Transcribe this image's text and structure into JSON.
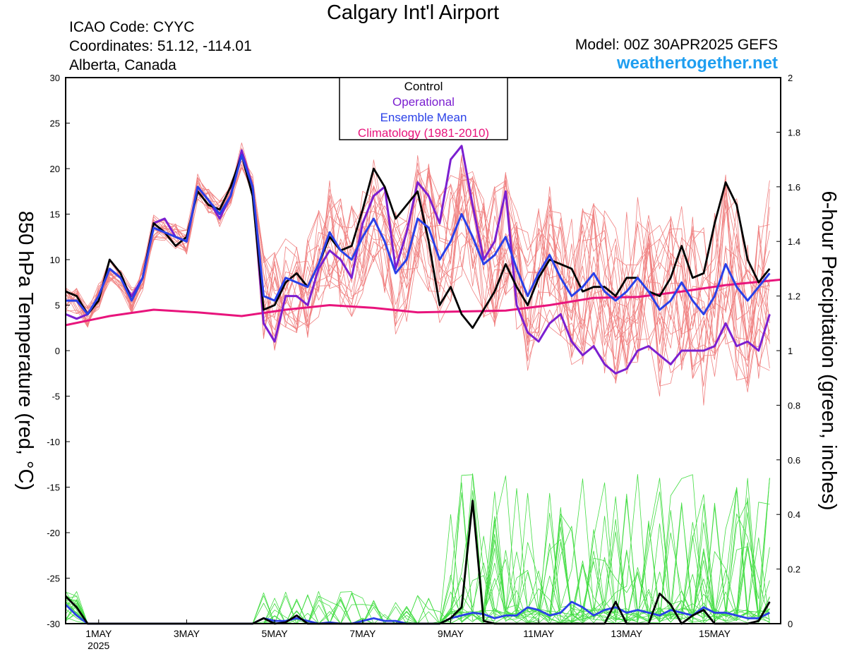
{
  "header": {
    "title": "Calgary Int'l Airport",
    "icao": "ICAO Code: CYYC",
    "coordinates": "Coordinates: 51.12, -114.01",
    "region": "Alberta, Canada",
    "model": "Model: 00Z 30APR2025 GEFS",
    "site": "weathertogether.net"
  },
  "colors": {
    "members_temp": "#f08080",
    "members_precip": "#44dd44",
    "control": "#000000",
    "operational": "#7b1fd0",
    "ensemble_mean": "#2a40e8",
    "climatology": "#e8147c",
    "site": "#1e9ef0"
  },
  "chart_data": {
    "type": "line",
    "x_unit": "6-hour step from 30 Apr 2025 06Z",
    "xlim": [
      0,
      65
    ],
    "x_ticks": [
      {
        "x": 3,
        "label": "1MAY",
        "sublabel": "2025"
      },
      {
        "x": 11,
        "label": "3MAY"
      },
      {
        "x": 19,
        "label": "5MAY"
      },
      {
        "x": 27,
        "label": "7MAY"
      },
      {
        "x": 35,
        "label": "9MAY"
      },
      {
        "x": 43,
        "label": "11MAY"
      },
      {
        "x": 51,
        "label": "13MAY"
      },
      {
        "x": 59,
        "label": "15MAY"
      }
    ],
    "y_left": {
      "label": "850 hPa Temperature (red, °C)",
      "range": [
        -30,
        30
      ],
      "ticks": [
        "30",
        "25",
        "20",
        "15",
        "10",
        "5",
        "0",
        "-5",
        "-10",
        "-15",
        "-20",
        "-25",
        "-30"
      ]
    },
    "y_right": {
      "label": "6-hour Precipitation (green, inches)",
      "range": [
        0,
        2
      ],
      "ticks": [
        "2",
        "1.8",
        "1.6",
        "1.4",
        "1.2",
        "1",
        "0.8",
        "0.6",
        "0.4",
        "0.2",
        "0"
      ]
    },
    "legend": {
      "position": "top-center",
      "entries": [
        {
          "label": "Control",
          "color": "#000000"
        },
        {
          "label": "Operational",
          "color": "#7b1fd0"
        },
        {
          "label": "Ensemble Mean",
          "color": "#2a40e8"
        },
        {
          "label": "Climatology (1981-2010)",
          "color": "#e8147c"
        }
      ]
    },
    "temperature": {
      "control": [
        6.5,
        6,
        4,
        5.5,
        10,
        8.5,
        5.5,
        8,
        14,
        13,
        11.5,
        12.5,
        17.5,
        16,
        15.5,
        18,
        21.5,
        17,
        4.5,
        5,
        7.5,
        8.5,
        7,
        9.5,
        12.5,
        11,
        11.5,
        15.5,
        20,
        18,
        14.5,
        16,
        17.5,
        12,
        5,
        7,
        4,
        2.5,
        4.5,
        6.5,
        9.5,
        7,
        5,
        8,
        10,
        9.5,
        9,
        6.5,
        7,
        7,
        6,
        8,
        8,
        6.5,
        6,
        8,
        11.5,
        8,
        8.5,
        14,
        18.5,
        16,
        10,
        7.5,
        9
      ],
      "operational": [
        4,
        3.5,
        4,
        6,
        9,
        8,
        6,
        8,
        14,
        14.5,
        12.5,
        12,
        18,
        16.5,
        14.5,
        17,
        22,
        18,
        3,
        1,
        6,
        6,
        5,
        9,
        11,
        10,
        8,
        14,
        17,
        18,
        9,
        13,
        18.5,
        17,
        14,
        21,
        22.5,
        16,
        10,
        12,
        17.5,
        5,
        2,
        1,
        3,
        4,
        1,
        -0.5,
        0.5,
        -1.5,
        -2.5,
        -2,
        0,
        0.5,
        -0.5,
        -1.5,
        0,
        0,
        0,
        0.5,
        3,
        0.5,
        1,
        0,
        4
      ],
      "ensemble_mean": [
        5.5,
        5.5,
        4,
        6,
        9,
        8,
        5.5,
        8,
        13.5,
        13,
        12.5,
        12,
        18,
        16.5,
        15,
        17,
        21.5,
        18,
        6,
        5.5,
        8,
        7.5,
        7,
        9.5,
        13,
        11,
        10,
        12.5,
        14.5,
        12,
        8.5,
        10,
        14.5,
        13.5,
        10,
        12,
        15,
        12.5,
        9.5,
        10.5,
        12.5,
        9,
        6,
        8.5,
        10.5,
        8,
        6,
        7,
        8.5,
        6.5,
        5.5,
        6.5,
        8,
        6.5,
        4.5,
        5.5,
        7.5,
        5.5,
        4,
        6,
        9.5,
        7,
        5.5,
        7,
        8.5
      ],
      "climatology": [
        [
          0,
          2.8
        ],
        [
          4,
          3.8
        ],
        [
          8,
          4.5
        ],
        [
          12,
          4.2
        ],
        [
          16,
          3.8
        ],
        [
          20,
          4.5
        ],
        [
          24,
          5.0
        ],
        [
          28,
          4.7
        ],
        [
          32,
          4.2
        ],
        [
          36,
          4.3
        ],
        [
          40,
          4.4
        ],
        [
          44,
          5.0
        ],
        [
          48,
          5.8
        ],
        [
          52,
          5.9
        ],
        [
          56,
          6.5
        ],
        [
          60,
          7.2
        ],
        [
          65,
          7.8
        ]
      ]
    },
    "precipitation": {
      "control": [
        0.1,
        0.06,
        0,
        0,
        0,
        0,
        0,
        0,
        0,
        0,
        0,
        0,
        0,
        0,
        0,
        0,
        0,
        0,
        0.02,
        0,
        0.005,
        0.03,
        0,
        0,
        0,
        0,
        0,
        0,
        0,
        0,
        0,
        0,
        0,
        0,
        0,
        0.02,
        0.06,
        0.45,
        0.01,
        0,
        0,
        0,
        0,
        0,
        0,
        0,
        0,
        0,
        0,
        0,
        0.08,
        0,
        0,
        0,
        0.11,
        0.07,
        0,
        0.03,
        0.05,
        0,
        0,
        0,
        0,
        0.01,
        0.08
      ],
      "ensemble_mean": [
        0.07,
        0.03,
        0,
        0,
        0,
        0,
        0,
        0,
        0,
        0,
        0,
        0,
        0,
        0,
        0,
        0,
        0,
        0,
        0.02,
        0.01,
        0.01,
        0.02,
        0.01,
        0,
        0.005,
        0,
        0,
        0.01,
        0.02,
        0.01,
        0.01,
        0,
        0,
        0,
        0,
        0.02,
        0.03,
        0.04,
        0.035,
        0.02,
        0.03,
        0.03,
        0.06,
        0.05,
        0.03,
        0.04,
        0.08,
        0.06,
        0.03,
        0.05,
        0.06,
        0.04,
        0.05,
        0.04,
        0.03,
        0.05,
        0.04,
        0.03,
        0.06,
        0.04,
        0.04,
        0.03,
        0.02,
        0.02,
        0.04
      ]
    }
  }
}
